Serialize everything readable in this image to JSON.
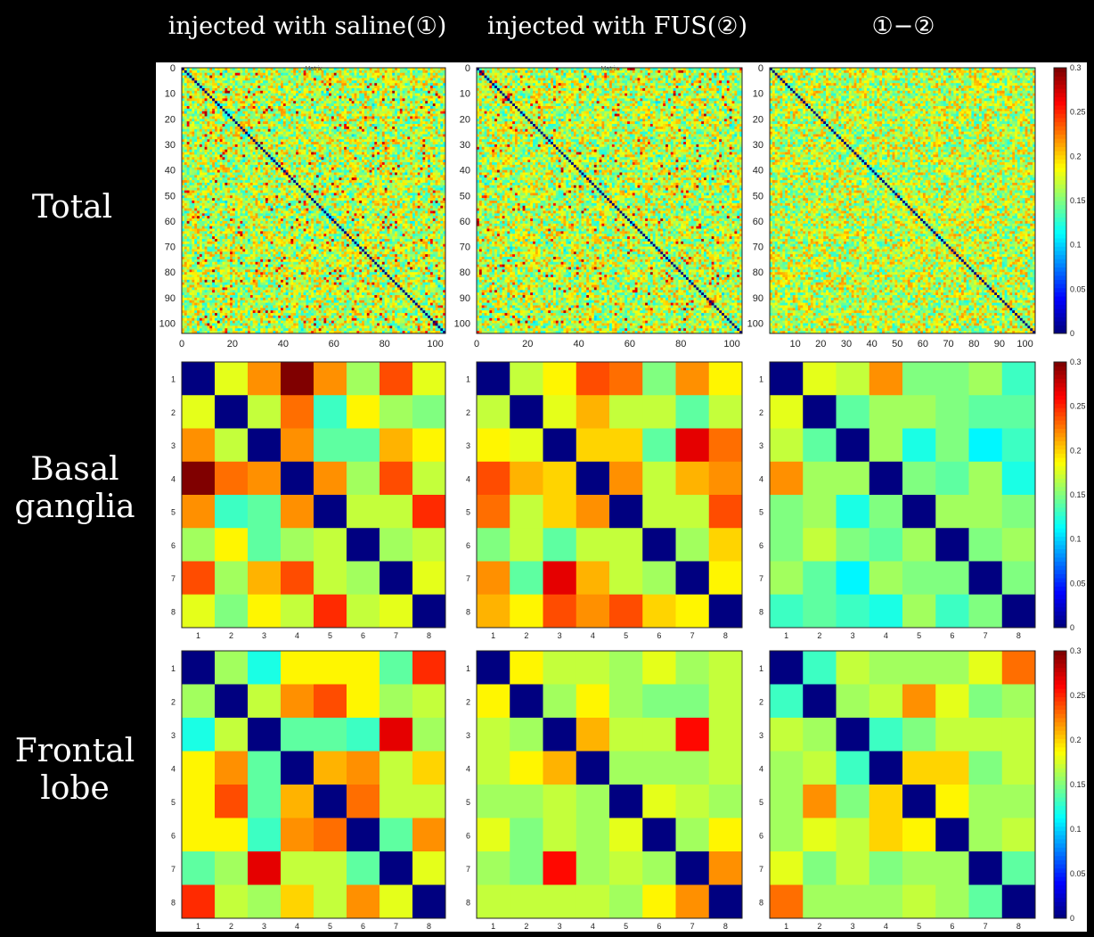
{
  "column_titles": [
    "injected with saline(①)",
    "injected with FUS(②)",
    "①−②"
  ],
  "row_titles": [
    "Total",
    "Basal\nganglia",
    "Frontal\nlobe"
  ],
  "colorbar": {
    "ticks": [
      "0.3",
      "0.25",
      "0.2",
      "0.15",
      "0.1",
      "0.05",
      "0"
    ],
    "range": [
      0,
      0.3
    ],
    "colormap": "jet"
  },
  "plot_title_fragment": "Matrix",
  "chart_data": [
    {
      "type": "heatmap",
      "row": "Total",
      "column": "injected with saline(①)",
      "size": 104,
      "generated": "random",
      "x_ticks": [
        "0",
        "20",
        "40",
        "60",
        "80",
        "100"
      ],
      "y_ticks": [
        "0",
        "10",
        "20",
        "30",
        "40",
        "50",
        "60",
        "70",
        "80",
        "90",
        "100"
      ],
      "range": [
        0,
        0.3
      ],
      "diagonal": 0
    },
    {
      "type": "heatmap",
      "row": "Total",
      "column": "injected with FUS(②)",
      "size": 104,
      "generated": "random",
      "x_ticks": [
        "0",
        "20",
        "40",
        "60",
        "80",
        "100"
      ],
      "y_ticks": [
        "0",
        "10",
        "20",
        "30",
        "40",
        "50",
        "60",
        "70",
        "80",
        "90",
        "100"
      ],
      "range": [
        0,
        0.3
      ],
      "diagonal": 0
    },
    {
      "type": "heatmap",
      "row": "Total",
      "column": "①−②",
      "size": 104,
      "generated": "random",
      "x_ticks": [
        "10",
        "20",
        "30",
        "40",
        "50",
        "60",
        "70",
        "80",
        "90",
        "100"
      ],
      "y_ticks": [
        "0",
        "10",
        "20",
        "30",
        "40",
        "50",
        "60",
        "70",
        "80",
        "90",
        "100"
      ],
      "range": [
        0,
        0.3
      ],
      "diagonal": 0
    },
    {
      "type": "heatmap",
      "row": "Basal ganglia",
      "column": "injected with saline(①)",
      "x_ticks": [
        "1",
        "2",
        "3",
        "4",
        "5",
        "6",
        "7",
        "8"
      ],
      "y_ticks": [
        "1",
        "2",
        "3",
        "4",
        "5",
        "6",
        "7",
        "8"
      ],
      "range": [
        0,
        0.3
      ],
      "values": [
        [
          0,
          0.18,
          0.22,
          0.3,
          0.22,
          0.16,
          0.24,
          0.18
        ],
        [
          0.18,
          0,
          0.17,
          0.23,
          0.13,
          0.19,
          0.16,
          0.15
        ],
        [
          0.22,
          0.17,
          0,
          0.22,
          0.14,
          0.14,
          0.21,
          0.19
        ],
        [
          0.3,
          0.23,
          0.22,
          0,
          0.22,
          0.16,
          0.24,
          0.17
        ],
        [
          0.22,
          0.13,
          0.14,
          0.22,
          0,
          0.17,
          0.17,
          0.25
        ],
        [
          0.16,
          0.19,
          0.14,
          0.16,
          0.17,
          0,
          0.16,
          0.17
        ],
        [
          0.24,
          0.16,
          0.21,
          0.24,
          0.17,
          0.16,
          0,
          0.18
        ],
        [
          0.18,
          0.15,
          0.19,
          0.17,
          0.25,
          0.17,
          0.18,
          0
        ]
      ]
    },
    {
      "type": "heatmap",
      "row": "Basal ganglia",
      "column": "injected with FUS(②)",
      "x_ticks": [
        "1",
        "2",
        "3",
        "4",
        "5",
        "6",
        "7",
        "8"
      ],
      "y_ticks": [
        "1",
        "2",
        "3",
        "4",
        "5",
        "6",
        "7",
        "8"
      ],
      "range": [
        0,
        0.3
      ],
      "values": [
        [
          0,
          0.17,
          0.19,
          0.24,
          0.23,
          0.15,
          0.22,
          0.19
        ],
        [
          0.17,
          0,
          0.18,
          0.21,
          0.17,
          0.17,
          0.14,
          0.17
        ],
        [
          0.19,
          0.18,
          0,
          0.2,
          0.2,
          0.14,
          0.27,
          0.23
        ],
        [
          0.24,
          0.21,
          0.2,
          0,
          0.22,
          0.17,
          0.21,
          0.22
        ],
        [
          0.23,
          0.17,
          0.2,
          0.22,
          0,
          0.17,
          0.17,
          0.24
        ],
        [
          0.15,
          0.17,
          0.14,
          0.17,
          0.17,
          0,
          0.16,
          0.2
        ],
        [
          0.22,
          0.14,
          0.27,
          0.21,
          0.17,
          0.16,
          0,
          0.19
        ],
        [
          0.21,
          0.19,
          0.24,
          0.22,
          0.24,
          0.2,
          0.19,
          0
        ]
      ]
    },
    {
      "type": "heatmap",
      "row": "Basal ganglia",
      "column": "①−②",
      "x_ticks": [
        "1",
        "2",
        "3",
        "4",
        "5",
        "6",
        "7",
        "8"
      ],
      "y_ticks": [
        "1",
        "2",
        "3",
        "4",
        "5",
        "6",
        "7",
        "8"
      ],
      "range": [
        0,
        0.3
      ],
      "values": [
        [
          0,
          0.18,
          0.17,
          0.22,
          0.15,
          0.15,
          0.16,
          0.13
        ],
        [
          0.18,
          0,
          0.14,
          0.16,
          0.16,
          0.15,
          0.14,
          0.14
        ],
        [
          0.17,
          0.14,
          0,
          0.16,
          0.12,
          0.15,
          0.11,
          0.13
        ],
        [
          0.22,
          0.16,
          0.16,
          0,
          0.15,
          0.14,
          0.16,
          0.12
        ],
        [
          0.15,
          0.16,
          0.12,
          0.15,
          0,
          0.16,
          0.16,
          0.15
        ],
        [
          0.15,
          0.17,
          0.15,
          0.14,
          0.16,
          0,
          0.15,
          0.16
        ],
        [
          0.16,
          0.14,
          0.11,
          0.16,
          0.15,
          0.15,
          0,
          0.15
        ],
        [
          0.13,
          0.14,
          0.13,
          0.12,
          0.16,
          0.13,
          0.15,
          0
        ]
      ]
    },
    {
      "type": "heatmap",
      "row": "Frontal lobe",
      "column": "injected with saline(①)",
      "x_ticks": [
        "1",
        "2",
        "3",
        "4",
        "5",
        "6",
        "7",
        "8"
      ],
      "y_ticks": [
        "1",
        "2",
        "3",
        "4",
        "5",
        "6",
        "7",
        "8"
      ],
      "range": [
        0,
        0.3
      ],
      "values": [
        [
          0,
          0.16,
          0.12,
          0.19,
          0.19,
          0.19,
          0.14,
          0.25
        ],
        [
          0.16,
          0,
          0.17,
          0.22,
          0.24,
          0.19,
          0.16,
          0.17
        ],
        [
          0.12,
          0.17,
          0,
          0.14,
          0.14,
          0.13,
          0.27,
          0.16
        ],
        [
          0.19,
          0.22,
          0.14,
          0,
          0.21,
          0.22,
          0.17,
          0.2
        ],
        [
          0.19,
          0.24,
          0.14,
          0.21,
          0,
          0.23,
          0.17,
          0.17
        ],
        [
          0.19,
          0.19,
          0.13,
          0.22,
          0.23,
          0,
          0.14,
          0.22
        ],
        [
          0.14,
          0.16,
          0.27,
          0.17,
          0.17,
          0.14,
          0,
          0.18
        ],
        [
          0.25,
          0.17,
          0.16,
          0.2,
          0.17,
          0.22,
          0.18,
          0
        ]
      ]
    },
    {
      "type": "heatmap",
      "row": "Frontal lobe",
      "column": "injected with FUS(②)",
      "x_ticks": [
        "1",
        "2",
        "3",
        "4",
        "5",
        "6",
        "7",
        "8"
      ],
      "y_ticks": [
        "1",
        "2",
        "3",
        "4",
        "5",
        "6",
        "7",
        "8"
      ],
      "range": [
        0,
        0.3
      ],
      "values": [
        [
          0,
          0.19,
          0.17,
          0.17,
          0.16,
          0.18,
          0.16,
          0.17
        ],
        [
          0.19,
          0,
          0.16,
          0.19,
          0.16,
          0.15,
          0.15,
          0.17
        ],
        [
          0.17,
          0.16,
          0,
          0.21,
          0.17,
          0.17,
          0.26,
          0.17
        ],
        [
          0.17,
          0.19,
          0.21,
          0,
          0.16,
          0.16,
          0.16,
          0.17
        ],
        [
          0.16,
          0.16,
          0.17,
          0.16,
          0,
          0.18,
          0.17,
          0.16
        ],
        [
          0.18,
          0.15,
          0.17,
          0.16,
          0.18,
          0,
          0.16,
          0.19
        ],
        [
          0.16,
          0.15,
          0.26,
          0.16,
          0.17,
          0.16,
          0,
          0.22
        ],
        [
          0.17,
          0.17,
          0.17,
          0.17,
          0.16,
          0.19,
          0.22,
          0
        ]
      ]
    },
    {
      "type": "heatmap",
      "row": "Frontal lobe",
      "column": "①−②",
      "x_ticks": [
        "1",
        "2",
        "3",
        "4",
        "5",
        "6",
        "7",
        "8"
      ],
      "y_ticks": [
        "1",
        "2",
        "3",
        "4",
        "5",
        "6",
        "7",
        "8"
      ],
      "range": [
        0,
        0.3
      ],
      "values": [
        [
          0,
          0.13,
          0.17,
          0.16,
          0.16,
          0.16,
          0.18,
          0.23
        ],
        [
          0.13,
          0,
          0.16,
          0.17,
          0.22,
          0.18,
          0.15,
          0.16
        ],
        [
          0.17,
          0.16,
          0,
          0.13,
          0.15,
          0.17,
          0.17,
          0.17
        ],
        [
          0.16,
          0.17,
          0.13,
          0,
          0.2,
          0.2,
          0.15,
          0.17
        ],
        [
          0.16,
          0.22,
          0.15,
          0.2,
          0,
          0.19,
          0.16,
          0.16
        ],
        [
          0.16,
          0.18,
          0.17,
          0.2,
          0.19,
          0,
          0.16,
          0.17
        ],
        [
          0.18,
          0.15,
          0.17,
          0.15,
          0.16,
          0.16,
          0,
          0.14
        ],
        [
          0.23,
          0.16,
          0.16,
          0.16,
          0.17,
          0.16,
          0.14,
          0
        ]
      ]
    }
  ]
}
